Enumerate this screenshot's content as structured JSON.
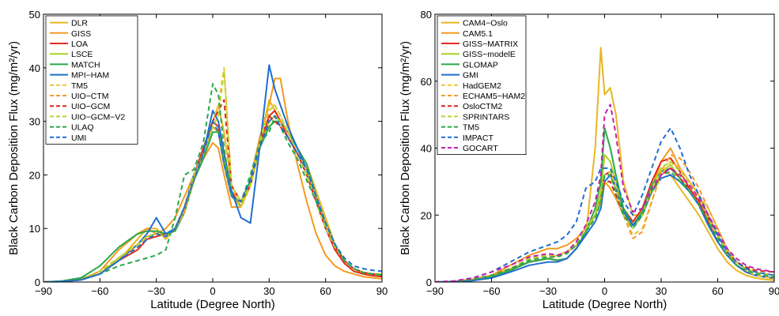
{
  "chart_data": [
    {
      "type": "line",
      "xlabel": "Latitude (Degree North)",
      "ylabel": "Black Carbon Deposition Flux (mg/m²/yr)",
      "xlim": [
        -90,
        90
      ],
      "ylim": [
        0,
        50
      ],
      "xticks": [
        -90,
        -60,
        -30,
        0,
        30,
        60,
        90
      ],
      "yticks": [
        0,
        10,
        20,
        30,
        40,
        50
      ],
      "legend_position": "top-left",
      "grid": false,
      "x": [
        -90,
        -80,
        -70,
        -60,
        -50,
        -40,
        -35,
        -30,
        -25,
        -20,
        -15,
        -10,
        -5,
        0,
        3,
        6,
        10,
        15,
        20,
        25,
        30,
        33,
        36,
        40,
        45,
        50,
        55,
        60,
        65,
        70,
        75,
        80,
        85,
        90
      ],
      "series": [
        {
          "name": "DLR",
          "color": "#e8b622",
          "dash": "solid",
          "values": [
            0,
            0.1,
            0.4,
            1.5,
            4,
            8,
            10,
            10,
            8,
            10,
            14,
            20,
            24,
            30,
            33,
            28,
            18,
            15,
            18,
            26,
            34,
            32,
            30,
            28,
            25,
            22,
            17,
            12,
            7,
            4,
            2.5,
            1.5,
            1.2,
            1.0
          ]
        },
        {
          "name": "GISS",
          "color": "#f39a1f",
          "dash": "solid",
          "values": [
            0,
            0.1,
            0.5,
            2,
            6,
            9,
            10,
            9,
            10,
            12,
            16,
            20,
            23,
            26,
            25,
            20,
            14,
            14,
            19,
            27,
            33,
            38,
            38,
            30,
            22,
            15,
            9,
            5,
            3,
            2,
            1.5,
            1,
            0.8,
            0.6
          ]
        },
        {
          "name": "LOA",
          "color": "#e32a1c",
          "dash": "solid",
          "values": [
            0,
            0.1,
            0.4,
            1.5,
            4,
            6,
            8,
            8.5,
            9,
            10,
            14,
            20,
            25,
            30,
            29,
            24,
            17,
            14,
            18,
            25,
            31,
            32,
            30,
            27,
            24,
            20,
            15,
            10,
            6,
            3.5,
            2,
            1.5,
            1.2,
            1.0
          ]
        },
        {
          "name": "LSCE",
          "color": "#a8d323",
          "dash": "solid",
          "values": [
            0,
            0.1,
            0.4,
            1.5,
            4.5,
            7,
            8.5,
            9,
            8.5,
            10,
            13,
            19,
            24,
            29,
            28,
            23,
            16,
            14,
            18,
            25,
            30,
            31,
            30,
            28,
            25,
            21,
            16,
            11,
            7,
            4,
            2.5,
            1.8,
            1.5,
            1.5
          ]
        },
        {
          "name": "MATCH",
          "color": "#2aa84a",
          "dash": "solid",
          "values": [
            0,
            0.2,
            0.8,
            3,
            6.5,
            9,
            9.5,
            9.5,
            9,
            9.5,
            13,
            19,
            23,
            28,
            28,
            22,
            16,
            15,
            19,
            25,
            29,
            30,
            30,
            28,
            25,
            22,
            16,
            11,
            7,
            4,
            2.5,
            1.8,
            1.5,
            1.3
          ]
        },
        {
          "name": "MPI−HAM",
          "color": "#1f6fd1",
          "dash": "solid",
          "values": [
            0,
            0.1,
            0.4,
            1.5,
            4,
            7,
            9,
            12,
            9,
            10,
            14,
            20,
            24,
            32,
            30,
            24,
            17,
            12,
            11,
            25,
            40.5,
            36,
            33,
            29,
            25,
            21,
            16,
            11,
            7,
            4,
            2.5,
            1.8,
            1.5,
            1.3
          ]
        },
        {
          "name": "TM5",
          "color": "#f1c232",
          "dash": "dashed",
          "values": [
            0,
            0.1,
            0.5,
            2,
            4.5,
            7,
            8.5,
            9,
            8.5,
            10,
            13,
            19,
            24,
            30,
            33,
            40,
            18,
            14,
            18,
            26,
            33,
            33,
            31,
            28,
            24,
            21,
            16,
            11,
            7,
            4,
            2.5,
            1.8,
            1.5,
            1.3
          ]
        },
        {
          "name": "UIO−CTM",
          "color": "#f59b2b",
          "dash": "dashed",
          "values": [
            0,
            0.1,
            0.4,
            1.5,
            4,
            7,
            8.5,
            9,
            8.5,
            10,
            13,
            20,
            24,
            29,
            28,
            22,
            16,
            15,
            18,
            25,
            30,
            31,
            30,
            28,
            24,
            20,
            15,
            10,
            6.5,
            4,
            2.5,
            1.8,
            1.5,
            1.3
          ]
        },
        {
          "name": "UIO−GCM",
          "color": "#d7281f",
          "dash": "dashed",
          "values": [
            0,
            0.1,
            0.5,
            2,
            4.5,
            7,
            8.5,
            9,
            8.5,
            10,
            14,
            20,
            24,
            30,
            32,
            34,
            18,
            15,
            18,
            26,
            31,
            30,
            29,
            27,
            24,
            20,
            15,
            10,
            6.5,
            4,
            2.5,
            1.8,
            1.5,
            1.3
          ]
        },
        {
          "name": "UIO−GCM−V2",
          "color": "#b9d530",
          "dash": "dashed",
          "values": [
            0,
            0.1,
            0.5,
            2,
            4.5,
            7,
            8.5,
            9,
            8.5,
            10,
            14,
            20,
            24,
            29,
            31,
            39.5,
            18,
            15,
            18,
            26,
            32,
            33,
            31,
            28,
            24,
            20,
            15,
            10,
            6.5,
            4,
            2.5,
            1.8,
            1.5,
            1.3
          ]
        },
        {
          "name": "ULAQ",
          "color": "#2aa84a",
          "dash": "dashed",
          "values": [
            0,
            0.1,
            0.5,
            1.5,
            3,
            4,
            4.5,
            5,
            6,
            12,
            20,
            21,
            26,
            37,
            35,
            25,
            16,
            15,
            20,
            26,
            28,
            31,
            29,
            26,
            23,
            19,
            15,
            11,
            7,
            4,
            2.5,
            1.8,
            1.5,
            1.3
          ]
        },
        {
          "name": "UMI",
          "color": "#1f6fd1",
          "dash": "dashed",
          "values": [
            0,
            0.1,
            0.4,
            1.5,
            4,
            6.5,
            8,
            9,
            8.5,
            10,
            14,
            19,
            24,
            30,
            28,
            22,
            16,
            15,
            19,
            25,
            30,
            31,
            29,
            27,
            24,
            21,
            16,
            11,
            7,
            4.5,
            3,
            2.5,
            2.2,
            2.0
          ]
        }
      ]
    },
    {
      "type": "line",
      "xlabel": "Latitude (Degree North)",
      "ylabel": "Black Carbon Deposition Flux (mg/m²/yr)",
      "xlim": [
        -90,
        90
      ],
      "ylim": [
        0,
        80
      ],
      "xticks": [
        -90,
        -60,
        -30,
        0,
        30,
        60,
        90
      ],
      "yticks": [
        0,
        20,
        40,
        60,
        80
      ],
      "legend_position": "top-left",
      "grid": false,
      "x": [
        -90,
        -80,
        -70,
        -60,
        -50,
        -40,
        -35,
        -30,
        -25,
        -20,
        -15,
        -10,
        -5,
        -2,
        0,
        3,
        6,
        10,
        15,
        20,
        25,
        30,
        35,
        40,
        45,
        50,
        55,
        60,
        65,
        70,
        75,
        80,
        85,
        90
      ],
      "series": [
        {
          "name": "CAM4−Oslo",
          "color": "#e8b622",
          "dash": "solid",
          "values": [
            0,
            0.2,
            0.8,
            2,
            4,
            6,
            6.5,
            7,
            8,
            9,
            11,
            14,
            40,
            70,
            56,
            58,
            50,
            30,
            20,
            20,
            28,
            34,
            32,
            28,
            24,
            20,
            15,
            10,
            6,
            3.5,
            2,
            1.2,
            0.8,
            0.5
          ]
        },
        {
          "name": "CAM5.1",
          "color": "#f39a1f",
          "dash": "solid",
          "values": [
            0,
            0.2,
            0.8,
            2,
            5,
            8,
            9,
            10,
            10,
            11,
            13,
            16,
            20,
            24,
            30,
            28,
            25,
            20,
            17,
            20,
            28,
            36,
            40,
            34,
            30,
            26,
            20,
            14,
            9,
            5,
            3,
            2,
            1.5,
            1.0
          ]
        },
        {
          "name": "GISS−MATRIX",
          "color": "#e32a1c",
          "dash": "solid",
          "values": [
            0,
            0.1,
            0.5,
            1.5,
            3.5,
            6,
            6.5,
            7,
            6.5,
            7,
            10,
            15,
            20,
            26,
            32,
            33,
            28,
            22,
            18,
            22,
            30,
            36,
            37,
            33,
            28,
            24,
            18,
            12,
            8,
            5,
            3,
            2,
            1.5,
            1.2
          ]
        },
        {
          "name": "GISS−modelE",
          "color": "#a8d323",
          "dash": "solid",
          "values": [
            0,
            0.1,
            0.5,
            1.5,
            3.5,
            6,
            6.5,
            7,
            6.5,
            7,
            10,
            15,
            20,
            27,
            38,
            36,
            30,
            22,
            17,
            21,
            29,
            33,
            35,
            31,
            27,
            23,
            17,
            12,
            8,
            5,
            3,
            2,
            1.5,
            1.2
          ]
        },
        {
          "name": "GLOMAP",
          "color": "#2aa84a",
          "dash": "solid",
          "values": [
            0,
            0.1,
            0.5,
            1.5,
            3.5,
            6,
            6.5,
            7,
            6.5,
            7,
            10,
            15,
            22,
            30,
            46,
            40,
            32,
            22,
            17,
            21,
            29,
            33,
            34,
            31,
            27,
            23,
            17,
            12,
            8,
            5,
            3,
            2,
            1.5,
            1.2
          ]
        },
        {
          "name": "GMI",
          "color": "#1f6fd1",
          "dash": "solid",
          "values": [
            0,
            0.1,
            0.4,
            1.2,
            3,
            5,
            5.5,
            6,
            6,
            7,
            10,
            14,
            18,
            22,
            30,
            32,
            28,
            21,
            17,
            20,
            27,
            31,
            32,
            30,
            27,
            23,
            17,
            12,
            8,
            5,
            3,
            2,
            1.5,
            1.2
          ]
        },
        {
          "name": "HadGEM2",
          "color": "#f1c232",
          "dash": "dashed",
          "values": [
            0,
            0.2,
            0.8,
            2,
            4,
            7,
            7.5,
            8,
            8,
            9,
            12,
            16,
            20,
            24,
            30,
            30,
            26,
            20,
            14,
            16,
            24,
            32,
            36,
            34,
            30,
            26,
            22,
            16,
            10,
            6,
            3.5,
            2,
            1.5,
            1.0
          ]
        },
        {
          "name": "ECHAM5−HAM2",
          "color": "#f59b2b",
          "dash": "dashed",
          "values": [
            0,
            0.2,
            0.8,
            2,
            4,
            7,
            7.5,
            8,
            8,
            9,
            12,
            16,
            20,
            24,
            30,
            30,
            26,
            20,
            13,
            15,
            24,
            33,
            38,
            37,
            33,
            28,
            22,
            16,
            10,
            6,
            4,
            3,
            2.5,
            2.0
          ]
        },
        {
          "name": "OsloCTM2",
          "color": "#d7281f",
          "dash": "dashed",
          "values": [
            0,
            0.2,
            0.8,
            2,
            4,
            7,
            7.5,
            8,
            8,
            9,
            12,
            16,
            20,
            24,
            30,
            30,
            26,
            20,
            16,
            20,
            27,
            32,
            34,
            31,
            28,
            24,
            19,
            14,
            9,
            6,
            4.5,
            3.5,
            3.2,
            3.0
          ]
        },
        {
          "name": "SPRINTARS",
          "color": "#b9d530",
          "dash": "dashed",
          "values": [
            0,
            0.2,
            0.8,
            2,
            4,
            7,
            7.5,
            8,
            8,
            9,
            12,
            16,
            20,
            25,
            32,
            33,
            28,
            20,
            16,
            20,
            28,
            34,
            36,
            33,
            29,
            25,
            19,
            14,
            9,
            6,
            4,
            3,
            2.5,
            2.0
          ]
        },
        {
          "name": "TM5",
          "color": "#2aa84a",
          "dash": "dashed",
          "values": [
            0,
            0.2,
            0.8,
            2,
            4,
            6.5,
            7,
            7.5,
            7.5,
            8.5,
            11,
            15,
            19,
            24,
            32,
            32,
            27,
            20,
            16,
            20,
            27,
            32,
            33,
            30,
            27,
            23,
            18,
            13,
            8,
            5,
            3.5,
            2.5,
            2,
            1.5
          ]
        },
        {
          "name": "IMPACT",
          "color": "#1f6fd1",
          "dash": "dashed",
          "values": [
            0,
            0.3,
            1.2,
            3,
            6,
            9,
            10,
            11,
            12,
            14,
            18,
            28,
            30,
            34,
            34,
            34,
            30,
            24,
            20,
            26,
            34,
            42,
            46,
            40,
            32,
            26,
            20,
            14,
            9,
            6,
            4,
            3,
            2.5,
            2.0
          ]
        },
        {
          "name": "GOCART",
          "color": "#c41eb0",
          "dash": "dashed",
          "values": [
            0,
            0.3,
            1.2,
            3,
            5,
            7.5,
            8,
            8.5,
            8,
            9,
            12,
            17,
            24,
            32,
            50,
            53,
            44,
            28,
            21,
            22,
            28,
            32,
            34,
            32,
            29,
            25,
            20,
            15,
            10,
            7,
            5,
            4,
            3.5,
            3.0
          ]
        }
      ]
    }
  ]
}
